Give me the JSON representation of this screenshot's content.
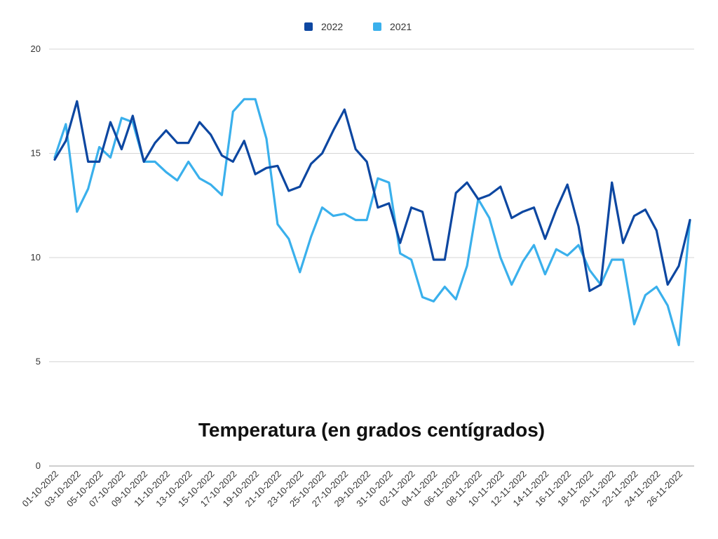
{
  "chart_data": {
    "type": "line",
    "title": "Temperatura (en grados centígrados)",
    "xlabel": "",
    "ylabel": "",
    "ylim": [
      0,
      20
    ],
    "yticks": [
      "0",
      "5",
      "10",
      "15",
      "20"
    ],
    "grid": true,
    "legend_position": "top-center",
    "x": [
      "01-10-2022",
      "02-10-2022",
      "03-10-2022",
      "04-10-2022",
      "05-10-2022",
      "06-10-2022",
      "07-10-2022",
      "08-10-2022",
      "09-10-2022",
      "10-10-2022",
      "11-10-2022",
      "12-10-2022",
      "13-10-2022",
      "14-10-2022",
      "15-10-2022",
      "16-10-2022",
      "17-10-2022",
      "18-10-2022",
      "19-10-2022",
      "20-10-2022",
      "21-10-2022",
      "22-10-2022",
      "23-10-2022",
      "24-10-2022",
      "25-10-2022",
      "26-10-2022",
      "27-10-2022",
      "28-10-2022",
      "29-10-2022",
      "30-10-2022",
      "31-10-2022",
      "01-11-2022",
      "02-11-2022",
      "03-11-2022",
      "04-11-2022",
      "05-11-2022",
      "06-11-2022",
      "07-11-2022",
      "08-11-2022",
      "09-11-2022",
      "10-11-2022",
      "11-11-2022",
      "12-11-2022",
      "13-11-2022",
      "14-11-2022",
      "15-11-2022",
      "16-11-2022",
      "17-11-2022",
      "18-11-2022",
      "19-11-2022",
      "20-11-2022",
      "21-11-2022",
      "22-11-2022",
      "23-11-2022",
      "24-11-2022",
      "25-11-2022",
      "26-11-2022",
      "27-11-2022"
    ],
    "xtick_labels": [
      "01-10-2022",
      "03-10-2022",
      "05-10-2022",
      "07-10-2022",
      "09-10-2022",
      "11-10-2022",
      "13-10-2022",
      "15-10-2022",
      "17-10-2022",
      "19-10-2022",
      "21-10-2022",
      "23-10-2022",
      "25-10-2022",
      "27-10-2022",
      "29-10-2022",
      "31-10-2022",
      "02-11-2022",
      "04-11-2022",
      "06-11-2022",
      "08-11-2022",
      "10-11-2022",
      "12-11-2022",
      "14-11-2022",
      "16-11-2022",
      "18-11-2022",
      "20-11-2022",
      "22-11-2022",
      "24-11-2022",
      "26-11-2022"
    ],
    "series": [
      {
        "name": "2022",
        "color": "#0d47a1",
        "values": [
          14.7,
          15.6,
          17.5,
          14.6,
          14.6,
          16.5,
          15.2,
          16.8,
          14.6,
          15.5,
          16.1,
          15.5,
          15.5,
          16.5,
          15.9,
          14.9,
          14.6,
          15.6,
          14.0,
          14.3,
          14.4,
          13.2,
          13.4,
          14.5,
          15.0,
          16.1,
          17.1,
          15.2,
          14.6,
          12.4,
          12.6,
          10.7,
          12.4,
          12.2,
          9.9,
          9.9,
          13.1,
          13.6,
          12.8,
          13.0,
          13.4,
          11.9,
          12.2,
          12.4,
          10.9,
          12.3,
          13.5,
          11.5,
          8.4,
          8.7,
          13.6,
          10.7,
          12.0,
          12.3,
          11.3,
          8.7,
          9.6,
          11.8
        ]
      },
      {
        "name": "2021",
        "color": "#3ab0ec",
        "values": [
          14.8,
          16.4,
          12.2,
          13.3,
          15.3,
          14.8,
          16.7,
          16.5,
          14.6,
          14.6,
          14.1,
          13.7,
          14.6,
          13.8,
          13.5,
          13.0,
          17.0,
          17.6,
          17.6,
          15.7,
          11.6,
          10.9,
          9.3,
          11.0,
          12.4,
          12.0,
          12.1,
          11.8,
          11.8,
          13.8,
          13.6,
          10.2,
          9.9,
          8.1,
          7.9,
          8.6,
          8.0,
          9.6,
          12.8,
          11.9,
          10.0,
          8.7,
          9.8,
          10.6,
          9.2,
          10.4,
          10.1,
          10.6,
          9.4,
          8.7,
          9.9,
          9.9,
          6.8,
          8.2,
          8.6,
          7.7,
          5.8,
          11.8
        ]
      }
    ]
  }
}
